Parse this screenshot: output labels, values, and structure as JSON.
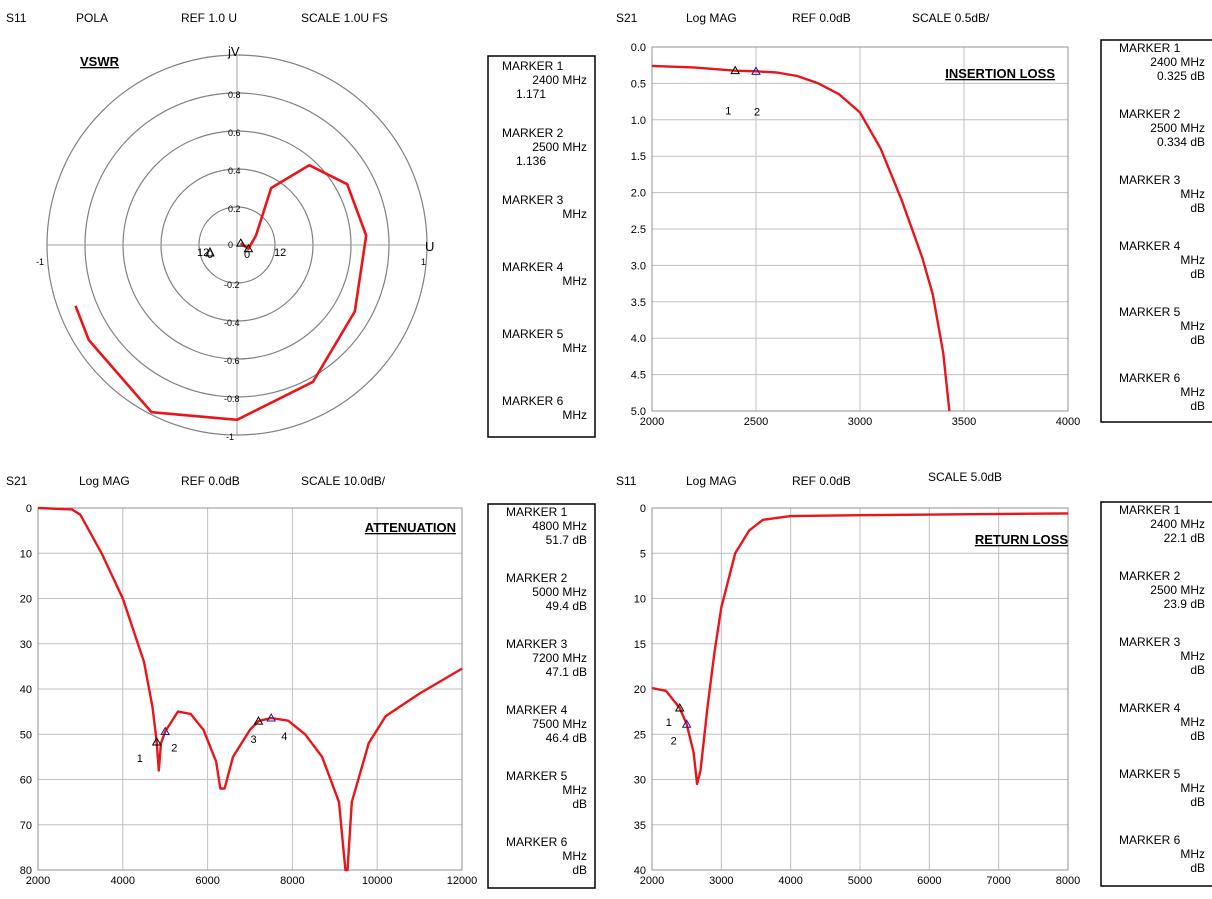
{
  "colors": {
    "trace": "#e8151b",
    "grid": "#c0c0c0",
    "polar_ring": "#808080",
    "frame": "#000000",
    "marker_blue": "#1a1aa6"
  },
  "charts": {
    "s11_polar": {
      "header": {
        "param": "S11",
        "format": "POLA",
        "ref": "REF 1.0 U",
        "scale": "SCALE 1.0U FS"
      },
      "title": "VSWR",
      "axis_labels": {
        "imag": "jV",
        "real": "U",
        "neg_one": "-1",
        "pos_one": "1",
        "rings_pos": [
          "0.8",
          "0.6",
          "0.4",
          "0.2",
          "0"
        ],
        "rings_neg": [
          "-0.2",
          "-0.4",
          "-0.6",
          "-0.8",
          "-1"
        ]
      },
      "point_labels": {
        "left": "12",
        "right": "12",
        "zero_a": "0",
        "zero_b": "0"
      },
      "markers": [
        {
          "name": "MARKER 1",
          "freq": "2400 MHz",
          "value": "1.171"
        },
        {
          "name": "MARKER 2",
          "freq": "2500 MHz",
          "value": "1.136"
        },
        {
          "name": "MARKER 3",
          "freq": "MHz",
          "value": ""
        },
        {
          "name": "MARKER 4",
          "freq": "MHz",
          "value": ""
        },
        {
          "name": "MARKER 5",
          "freq": "MHz",
          "value": ""
        },
        {
          "name": "MARKER 6",
          "freq": "MHz",
          "value": ""
        }
      ]
    },
    "insertion_loss": {
      "header": {
        "param": "S21",
        "format": "Log MAG",
        "ref": "REF 0.0dB",
        "scale": "SCALE 0.5dB/"
      },
      "title": "INSERTION  LOSS",
      "x_ticks": [
        "2000",
        "2500",
        "3000",
        "3500",
        "4000"
      ],
      "y_ticks": [
        "0.0",
        "0.5",
        "1.0",
        "1.5",
        "2.0",
        "2.5",
        "3.0",
        "3.5",
        "4.0",
        "4.5",
        "5.0"
      ],
      "marker_labels": [
        "1",
        "2"
      ],
      "markers": [
        {
          "name": "MARKER 1",
          "freq": "2400 MHz",
          "value": "0.325 dB"
        },
        {
          "name": "MARKER 2",
          "freq": "2500 MHz",
          "value": "0.334 dB"
        },
        {
          "name": "MARKER 3",
          "freq": "MHz",
          "value": "dB"
        },
        {
          "name": "MARKER 4",
          "freq": "MHz",
          "value": "dB"
        },
        {
          "name": "MARKER 5",
          "freq": "MHz",
          "value": "dB"
        },
        {
          "name": "MARKER 6",
          "freq": "MHz",
          "value": "dB"
        }
      ]
    },
    "attenuation": {
      "header": {
        "param": "S21",
        "format": "Log MAG",
        "ref": "REF 0.0dB",
        "scale": "SCALE 10.0dB/"
      },
      "title": "ATTENUATION",
      "x_ticks": [
        "2000",
        "4000",
        "6000",
        "8000",
        "10000",
        "12000"
      ],
      "y_ticks": [
        "0",
        "10",
        "20",
        "30",
        "40",
        "50",
        "60",
        "70",
        "80"
      ],
      "marker_labels": [
        "1",
        "2",
        "3",
        "4"
      ],
      "markers": [
        {
          "name": "MARKER 1",
          "freq": "4800 MHz",
          "value": "51.7 dB"
        },
        {
          "name": "MARKER 2",
          "freq": "5000 MHz",
          "value": "49.4 dB"
        },
        {
          "name": "MARKER 3",
          "freq": "7200 MHz",
          "value": "47.1 dB"
        },
        {
          "name": "MARKER 4",
          "freq": "7500 MHz",
          "value": "46.4 dB"
        },
        {
          "name": "MARKER 5",
          "freq": "MHz",
          "value": "dB"
        },
        {
          "name": "MARKER 6",
          "freq": "MHz",
          "value": "dB"
        }
      ]
    },
    "return_loss": {
      "header": {
        "param": "S11",
        "format": "Log MAG",
        "ref": "REF 0.0dB",
        "scale": "SCALE 5.0dB"
      },
      "title": "RETURN LOSS",
      "x_ticks": [
        "2000",
        "3000",
        "4000",
        "5000",
        "6000",
        "7000",
        "8000"
      ],
      "y_ticks": [
        "0",
        "5",
        "10",
        "15",
        "20",
        "25",
        "30",
        "35",
        "40"
      ],
      "marker_labels": [
        "1",
        "2"
      ],
      "markers": [
        {
          "name": "MARKER 1",
          "freq": "2400 MHz",
          "value": "22.1 dB"
        },
        {
          "name": "MARKER 2",
          "freq": "2500 MHz",
          "value": "23.9 dB"
        },
        {
          "name": "MARKER 3",
          "freq": "MHz",
          "value": "dB"
        },
        {
          "name": "MARKER 4",
          "freq": "MHz",
          "value": "dB"
        },
        {
          "name": "MARKER 5",
          "freq": "MHz",
          "value": "dB"
        },
        {
          "name": "MARKER 6",
          "freq": "MHz",
          "value": "dB"
        }
      ]
    }
  },
  "chart_data": [
    {
      "type": "scatter",
      "title": "VSWR",
      "xlim": [
        -1,
        1
      ],
      "ylim": [
        -1,
        1
      ],
      "series": [
        {
          "values": [
            [
              0.02,
              0.01
            ],
            [
              0.06,
              -0.02
            ],
            [
              0.1,
              0.05
            ],
            [
              0.18,
              0.3
            ],
            [
              0.38,
              0.42
            ],
            [
              0.58,
              0.32
            ],
            [
              0.68,
              0.05
            ],
            [
              0.62,
              -0.35
            ],
            [
              0.4,
              -0.72
            ],
            [
              0.0,
              -0.92
            ],
            [
              -0.45,
              -0.88
            ],
            [
              -0.78,
              -0.5
            ],
            [
              -0.85,
              -0.32
            ]
          ]
        }
      ],
      "markers": [
        [
          0.06,
          -0.02
        ],
        [
          0.02,
          0.01
        ]
      ]
    },
    {
      "type": "line",
      "title": "INSERTION  LOSS",
      "xlim": [
        2000,
        4000
      ],
      "ylim": [
        5,
        0
      ],
      "series": [
        {
          "values": [
            [
              2000,
              0.26
            ],
            [
              2200,
              0.28
            ],
            [
              2400,
              0.325
            ],
            [
              2500,
              0.334
            ],
            [
              2600,
              0.35
            ],
            [
              2700,
              0.4
            ],
            [
              2800,
              0.5
            ],
            [
              2900,
              0.65
            ],
            [
              3000,
              0.9
            ],
            [
              3100,
              1.4
            ],
            [
              3200,
              2.1
            ],
            [
              3300,
              2.9
            ],
            [
              3350,
              3.4
            ],
            [
              3400,
              4.2
            ],
            [
              3430,
              5.0
            ]
          ]
        }
      ],
      "markers": [
        [
          2400,
          0.325
        ],
        [
          2500,
          0.334
        ]
      ]
    },
    {
      "type": "line",
      "title": "ATTENUATION",
      "xlim": [
        2000,
        12000
      ],
      "ylim": [
        80,
        0
      ],
      "series": [
        {
          "values": [
            [
              2000,
              0
            ],
            [
              2800,
              0.3
            ],
            [
              3000,
              1.5
            ],
            [
              3500,
              10
            ],
            [
              4000,
              20
            ],
            [
              4500,
              34
            ],
            [
              4700,
              44
            ],
            [
              4800,
              51.7
            ],
            [
              4850,
              58
            ],
            [
              4900,
              52
            ],
            [
              5000,
              49.4
            ],
            [
              5300,
              45
            ],
            [
              5600,
              45.5
            ],
            [
              5900,
              49
            ],
            [
              6200,
              56
            ],
            [
              6300,
              62
            ],
            [
              6400,
              62
            ],
            [
              6600,
              55
            ],
            [
              7000,
              49
            ],
            [
              7200,
              47.1
            ],
            [
              7500,
              46.4
            ],
            [
              7900,
              47
            ],
            [
              8300,
              50
            ],
            [
              8700,
              55
            ],
            [
              9100,
              65
            ],
            [
              9250,
              80
            ],
            [
              9300,
              80
            ],
            [
              9400,
              65
            ],
            [
              9800,
              52
            ],
            [
              10200,
              46
            ],
            [
              11000,
              41
            ],
            [
              12000,
              35.5
            ]
          ]
        }
      ],
      "markers": [
        [
          4800,
          51.7
        ],
        [
          5000,
          49.4
        ],
        [
          7200,
          47.1
        ],
        [
          7500,
          46.4
        ]
      ]
    },
    {
      "type": "line",
      "title": "RETURN LOSS",
      "xlim": [
        2000,
        8000
      ],
      "ylim": [
        40,
        0
      ],
      "series": [
        {
          "values": [
            [
              2000,
              19.9
            ],
            [
              2200,
              20.2
            ],
            [
              2400,
              22.1
            ],
            [
              2500,
              23.9
            ],
            [
              2600,
              27
            ],
            [
              2650,
              30.5
            ],
            [
              2700,
              29
            ],
            [
              2800,
              22
            ],
            [
              2900,
              16
            ],
            [
              3000,
              11
            ],
            [
              3200,
              5
            ],
            [
              3400,
              2.5
            ],
            [
              3600,
              1.3
            ],
            [
              4000,
              0.9
            ],
            [
              5000,
              0.8
            ],
            [
              8000,
              0.6
            ]
          ]
        }
      ],
      "markers": [
        [
          2400,
          22.1
        ],
        [
          2500,
          23.9
        ]
      ]
    }
  ]
}
